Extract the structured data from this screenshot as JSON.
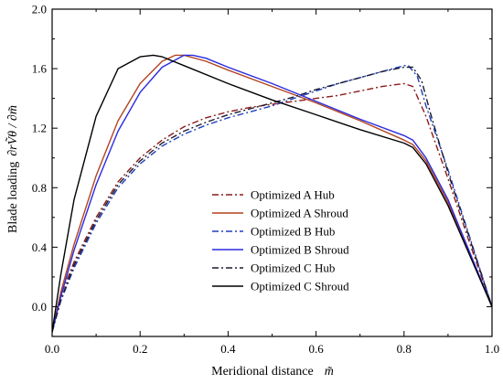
{
  "chart_data": {
    "type": "line",
    "title": "",
    "xlabel": "Meridional distance",
    "xlabel_symbol": "m̃",
    "ylabel": "Blade loading",
    "ylabel_symbol": "∂rṼθ / ∂m̃",
    "xlim": [
      0.0,
      1.0
    ],
    "ylim": [
      -0.2,
      2.0
    ],
    "xticks": [
      0.0,
      0.2,
      0.4,
      0.6,
      0.8,
      1.0
    ],
    "yticks": [
      0.0,
      0.4,
      0.8,
      1.2,
      1.6,
      2.0
    ],
    "xtick_labels": [
      "0.0",
      "0.2",
      "0.4",
      "0.6",
      "0.8",
      "1.0"
    ],
    "ytick_labels": [
      "0.0",
      "0.4",
      "0.8",
      "1.2",
      "1.6",
      "2.0"
    ],
    "grid": false,
    "legend_position": "center-right",
    "series": [
      {
        "name": "Optimized A Hub",
        "color": "#8b1a1a",
        "dash": "dashdot",
        "x": [
          0.0,
          0.02,
          0.05,
          0.1,
          0.15,
          0.2,
          0.25,
          0.3,
          0.35,
          0.4,
          0.45,
          0.5,
          0.55,
          0.6,
          0.65,
          0.7,
          0.75,
          0.8,
          0.82,
          0.85,
          0.9,
          0.95,
          1.0
        ],
        "y": [
          -0.17,
          0.08,
          0.3,
          0.6,
          0.84,
          1.0,
          1.12,
          1.21,
          1.27,
          1.31,
          1.34,
          1.36,
          1.38,
          1.4,
          1.42,
          1.45,
          1.48,
          1.5,
          1.48,
          1.28,
          0.86,
          0.42,
          0.0
        ]
      },
      {
        "name": "Optimized A Shroud",
        "color": "#b2441f",
        "dash": "solid",
        "x": [
          0.0,
          0.02,
          0.05,
          0.1,
          0.15,
          0.2,
          0.25,
          0.28,
          0.3,
          0.35,
          0.4,
          0.5,
          0.6,
          0.7,
          0.8,
          0.82,
          0.85,
          0.9,
          0.95,
          1.0
        ],
        "y": [
          -0.17,
          0.1,
          0.42,
          0.88,
          1.25,
          1.5,
          1.65,
          1.69,
          1.69,
          1.65,
          1.59,
          1.48,
          1.37,
          1.25,
          1.12,
          1.09,
          0.98,
          0.7,
          0.35,
          0.0
        ]
      },
      {
        "name": "Optimized B Hub",
        "color": "#1f3fbf",
        "dash": "dashdot",
        "x": [
          0.0,
          0.02,
          0.05,
          0.1,
          0.15,
          0.2,
          0.25,
          0.3,
          0.35,
          0.4,
          0.45,
          0.5,
          0.55,
          0.6,
          0.65,
          0.7,
          0.75,
          0.8,
          0.81,
          0.83,
          0.85,
          0.9,
          0.95,
          1.0
        ],
        "y": [
          -0.17,
          0.04,
          0.26,
          0.56,
          0.8,
          0.96,
          1.08,
          1.16,
          1.22,
          1.27,
          1.31,
          1.35,
          1.4,
          1.45,
          1.5,
          1.54,
          1.58,
          1.62,
          1.62,
          1.55,
          1.35,
          0.92,
          0.46,
          0.0
        ]
      },
      {
        "name": "Optimized B Shroud",
        "color": "#2a2ae0",
        "dash": "solid",
        "x": [
          0.0,
          0.02,
          0.05,
          0.1,
          0.15,
          0.2,
          0.25,
          0.3,
          0.32,
          0.35,
          0.4,
          0.5,
          0.6,
          0.7,
          0.8,
          0.82,
          0.85,
          0.9,
          0.95,
          1.0
        ],
        "y": [
          -0.17,
          0.07,
          0.38,
          0.82,
          1.18,
          1.44,
          1.61,
          1.69,
          1.69,
          1.67,
          1.61,
          1.5,
          1.38,
          1.26,
          1.15,
          1.12,
          1.0,
          0.72,
          0.36,
          0.0
        ]
      },
      {
        "name": "Optimized C Hub",
        "color": "#1a1a2e",
        "dash": "dashdot",
        "x": [
          0.0,
          0.02,
          0.05,
          0.1,
          0.15,
          0.2,
          0.25,
          0.3,
          0.35,
          0.4,
          0.45,
          0.5,
          0.55,
          0.6,
          0.65,
          0.7,
          0.75,
          0.8,
          0.82,
          0.84,
          0.86,
          0.9,
          0.95,
          1.0
        ],
        "y": [
          -0.17,
          0.05,
          0.28,
          0.58,
          0.82,
          0.98,
          1.1,
          1.18,
          1.24,
          1.29,
          1.33,
          1.37,
          1.41,
          1.46,
          1.5,
          1.54,
          1.58,
          1.61,
          1.61,
          1.52,
          1.3,
          0.9,
          0.45,
          0.0
        ]
      },
      {
        "name": "Optimized C Shroud",
        "color": "#000000",
        "dash": "solid",
        "x": [
          0.0,
          0.02,
          0.05,
          0.1,
          0.15,
          0.2,
          0.23,
          0.25,
          0.3,
          0.4,
          0.5,
          0.6,
          0.7,
          0.8,
          0.82,
          0.85,
          0.9,
          0.95,
          1.0
        ],
        "y": [
          -0.17,
          0.22,
          0.72,
          1.28,
          1.6,
          1.68,
          1.69,
          1.68,
          1.62,
          1.5,
          1.39,
          1.29,
          1.19,
          1.1,
          1.07,
          0.96,
          0.68,
          0.34,
          0.0
        ]
      }
    ]
  }
}
